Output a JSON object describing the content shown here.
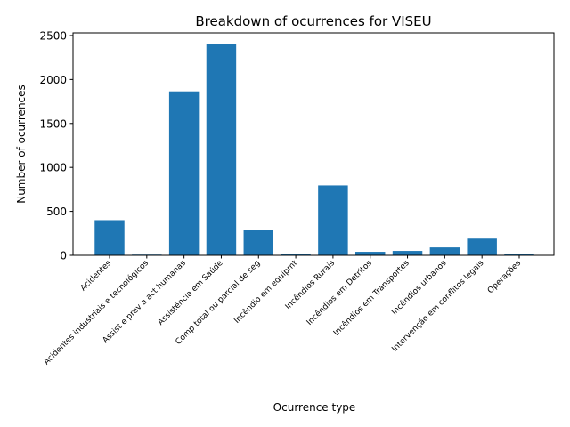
{
  "chart_data": {
    "type": "bar",
    "title": "Breakdown of ocurrences for VISEU",
    "xlabel": "Ocurrence type",
    "ylabel": "Number of ocurrences",
    "categories": [
      "Acidentes",
      "Acidentes industriais e tecnológicos",
      "Assist e prev a act humanas",
      "Assistência em Saúde",
      "Comp total ou parcial de seg",
      "Incêndio em equipmt",
      "Incêndios Rurais",
      "Incêndios em Detritos",
      "Incêndios em Transportes",
      "Incêndios urbanos",
      "Intervenção em conflitos legais",
      "Operações"
    ],
    "values": [
      400,
      8,
      1865,
      2400,
      290,
      20,
      795,
      40,
      50,
      90,
      190,
      20
    ],
    "ylim": [
      0,
      2530
    ],
    "yticks": [
      0,
      500,
      1000,
      1500,
      2000,
      2500
    ],
    "bar_color": "#1f77b4",
    "grid": false,
    "legend": "none"
  }
}
